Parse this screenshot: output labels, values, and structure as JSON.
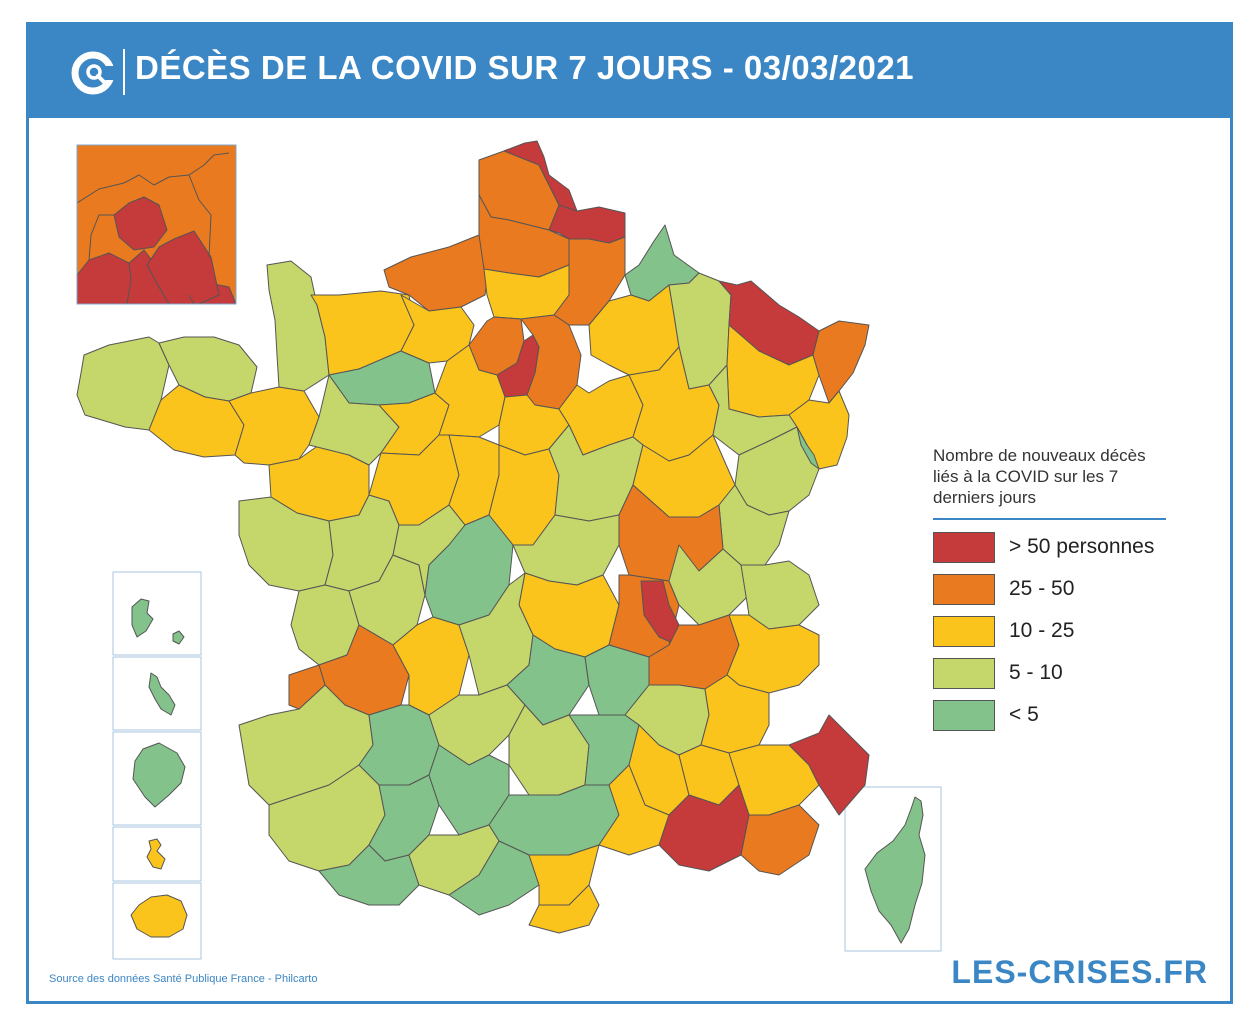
{
  "header": {
    "title": "DÉCÈS DE LA COVID SUR 7 JOURS - 03/03/2021"
  },
  "legend": {
    "title": "Nombre de nouveaux décès liés à la COVID sur les 7 derniers jours",
    "items": [
      {
        "label": "> 50 personnes",
        "color": "#c53a3a"
      },
      {
        "label": "25 - 50",
        "color": "#ea7a1f"
      },
      {
        "label": "10 - 25",
        "color": "#fbc41c"
      },
      {
        "label": "5 - 10",
        "color": "#c5d66a"
      },
      {
        "label": "< 5",
        "color": "#83c28a"
      }
    ]
  },
  "footer": {
    "source": "Source des données Santé Publique France - Philcarto",
    "brand": "LES-CRISES.FR"
  },
  "colors": {
    "accent": "#3b86c4",
    "red": "#c53a3a",
    "orange": "#ea7a1f",
    "yellow": "#fbc41c",
    "lightgreen": "#c5d66a",
    "green": "#83c28a"
  }
}
